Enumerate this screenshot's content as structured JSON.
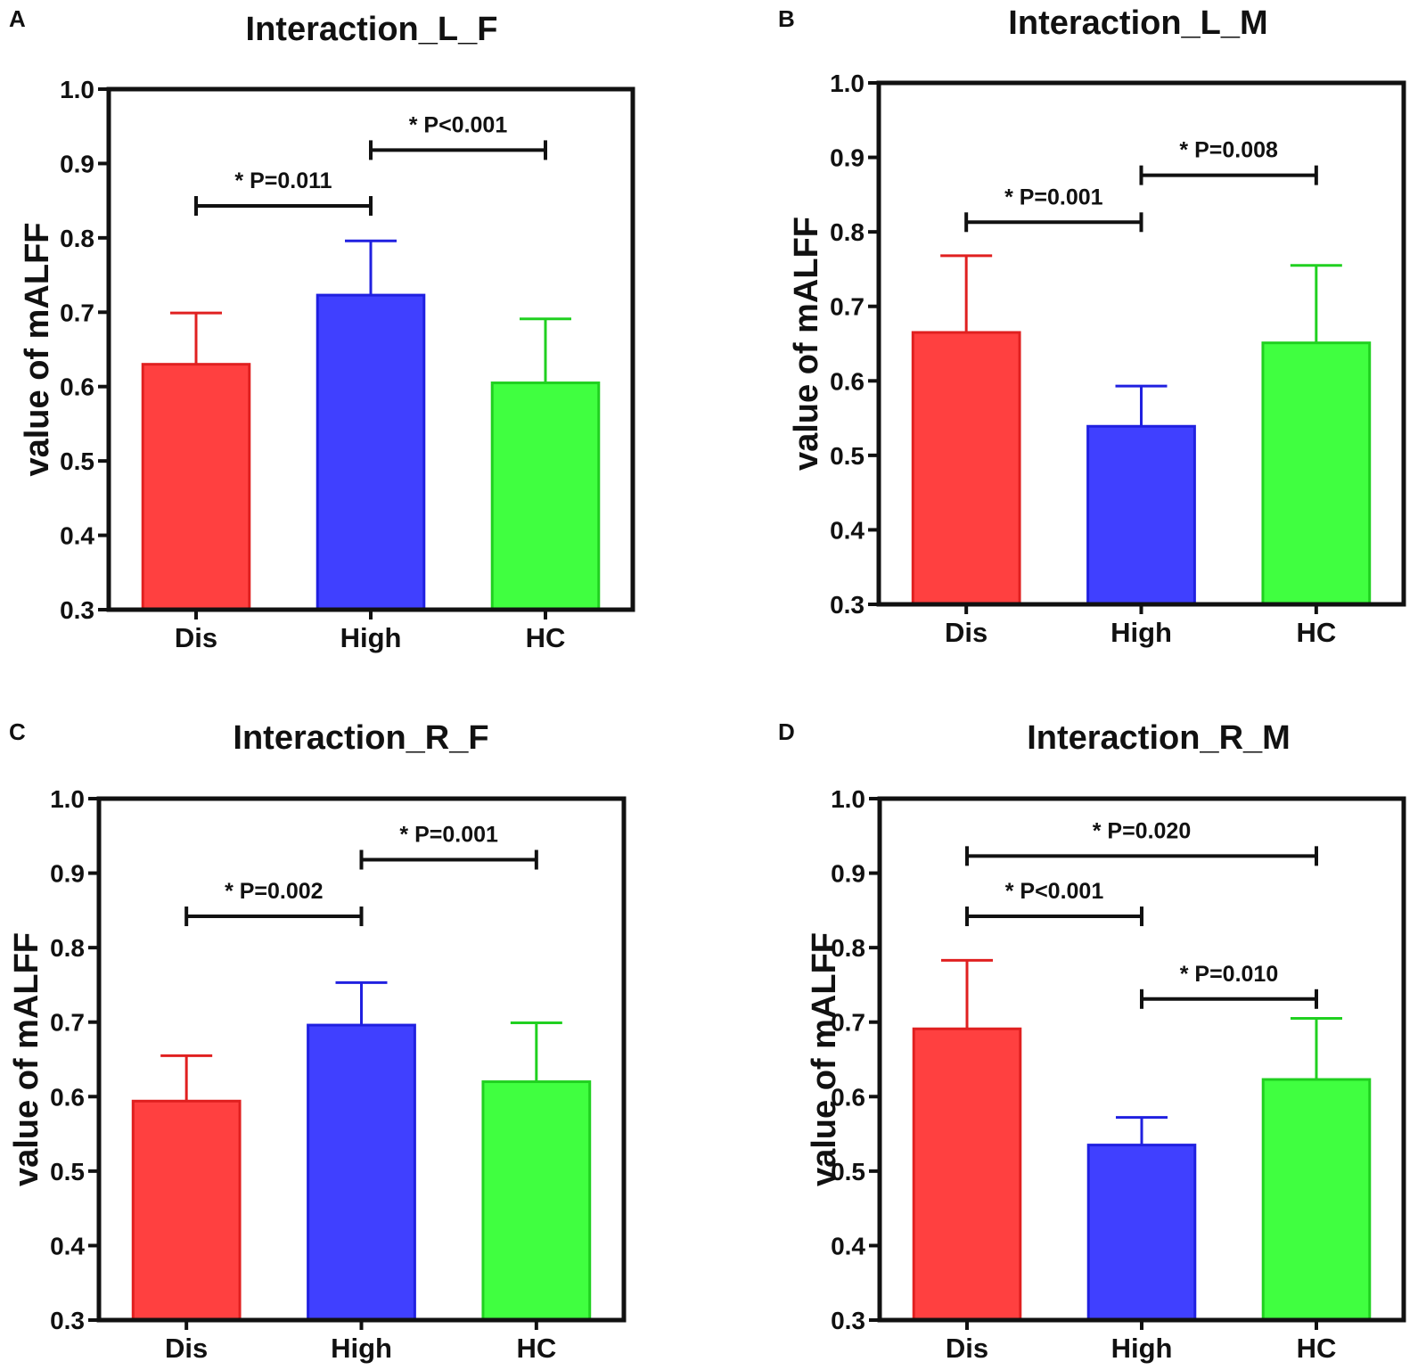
{
  "figure": {
    "chart_data": [
      {
        "panel": "A",
        "type": "bar",
        "title": "Interaction_L_F",
        "ylabel": "value of mALFF",
        "xlabel": "",
        "ylim": [
          0.3,
          1.0
        ],
        "yticks": [
          "0.3",
          "0.4",
          "0.5",
          "0.6",
          "0.7",
          "0.8",
          "0.9",
          "1.0"
        ],
        "categories": [
          "Dis",
          "High",
          "HC"
        ],
        "values": [
          0.63,
          0.723,
          0.605
        ],
        "error_upper": [
          0.699,
          0.796,
          0.691
        ],
        "colors": [
          "#ff4040",
          "#4040ff",
          "#40ff40"
        ],
        "edge_colors": [
          "#e02020",
          "#2020e0",
          "#20d020"
        ],
        "comparisons": [
          {
            "from": 0,
            "to": 1,
            "label": "* P=0.011",
            "y": 0.843
          },
          {
            "from": 1,
            "to": 2,
            "label": "* P<0.001",
            "y": 0.918
          }
        ]
      },
      {
        "panel": "B",
        "type": "bar",
        "title": "Interaction_L_M",
        "ylabel": "value of mALFF",
        "xlabel": "",
        "ylim": [
          0.3,
          1.0
        ],
        "yticks": [
          "0.3",
          "0.4",
          "0.5",
          "0.6",
          "0.7",
          "0.8",
          "0.9",
          "1.0"
        ],
        "categories": [
          "Dis",
          "High",
          "HC"
        ],
        "values": [
          0.665,
          0.539,
          0.651
        ],
        "error_upper": [
          0.768,
          0.593,
          0.755
        ],
        "colors": [
          "#ff4040",
          "#4040ff",
          "#40ff40"
        ],
        "edge_colors": [
          "#e02020",
          "#2020e0",
          "#20d020"
        ],
        "comparisons": [
          {
            "from": 0,
            "to": 1,
            "label": "* P=0.001",
            "y": 0.813
          },
          {
            "from": 1,
            "to": 2,
            "label": "* P=0.008",
            "y": 0.876
          }
        ]
      },
      {
        "panel": "C",
        "type": "bar",
        "title": "Interaction_R_F",
        "ylabel": "value of mALFF",
        "xlabel": "",
        "ylim": [
          0.3,
          1.0
        ],
        "yticks": [
          "0.3",
          "0.4",
          "0.5",
          "0.6",
          "0.7",
          "0.8",
          "0.9",
          "1.0"
        ],
        "categories": [
          "Dis",
          "High",
          "HC"
        ],
        "values": [
          0.594,
          0.696,
          0.62
        ],
        "error_upper": [
          0.655,
          0.753,
          0.699
        ],
        "colors": [
          "#ff4040",
          "#4040ff",
          "#40ff40"
        ],
        "edge_colors": [
          "#e02020",
          "#2020e0",
          "#20d020"
        ],
        "comparisons": [
          {
            "from": 0,
            "to": 1,
            "label": "* P=0.002",
            "y": 0.842
          },
          {
            "from": 1,
            "to": 2,
            "label": "* P=0.001",
            "y": 0.918
          }
        ]
      },
      {
        "panel": "D",
        "type": "bar",
        "title": "Interaction_R_M",
        "ylabel": "value of mALFF",
        "xlabel": "",
        "ylim": [
          0.3,
          1.0
        ],
        "yticks": [
          "0.3",
          "0.4",
          "0.5",
          "0.6",
          "0.7",
          "0.8",
          "0.9",
          "1.0"
        ],
        "categories": [
          "Dis",
          "High",
          "HC"
        ],
        "values": [
          0.691,
          0.535,
          0.623
        ],
        "error_upper": [
          0.783,
          0.572,
          0.705
        ],
        "colors": [
          "#ff4040",
          "#4040ff",
          "#40ff40"
        ],
        "edge_colors": [
          "#e02020",
          "#2020e0",
          "#20d020"
        ],
        "comparisons": [
          {
            "from": 0,
            "to": 2,
            "label": "* P=0.020",
            "y": 0.923
          },
          {
            "from": 0,
            "to": 1,
            "label": "* P<0.001",
            "y": 0.842
          },
          {
            "from": 1,
            "to": 2,
            "label": "* P=0.010",
            "y": 0.731
          }
        ]
      }
    ]
  }
}
